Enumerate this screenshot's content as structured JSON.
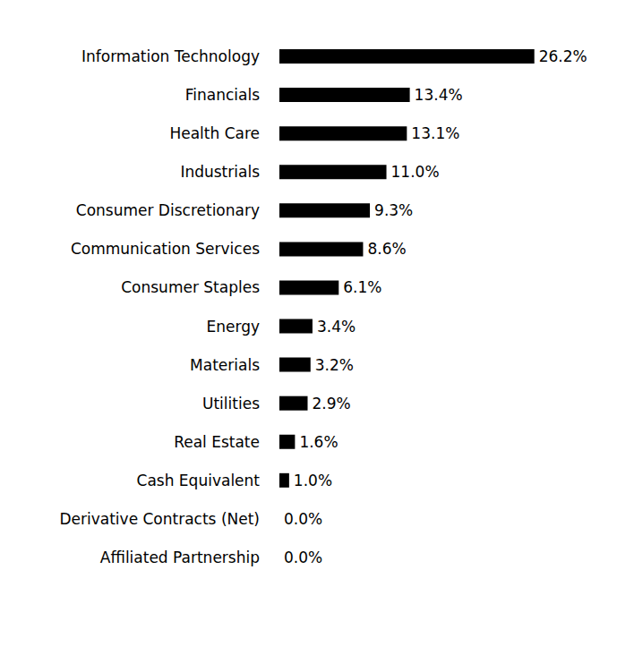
{
  "chart_data": {
    "type": "bar",
    "orientation": "horizontal",
    "categories": [
      "Information Technology",
      "Financials",
      "Health Care",
      "Industrials",
      "Consumer Discretionary",
      "Communication Services",
      "Consumer Staples",
      "Energy",
      "Materials",
      "Utilities",
      "Real Estate",
      "Cash Equivalent",
      "Derivative Contracts (Net)",
      "Affiliated Partnership"
    ],
    "values": [
      26.2,
      13.4,
      13.1,
      11.0,
      9.3,
      8.6,
      6.1,
      3.4,
      3.2,
      2.9,
      1.6,
      1.0,
      0.0,
      0.0
    ],
    "value_labels": [
      "26.2%",
      "13.4%",
      "13.1%",
      "11.0%",
      "9.3%",
      "8.6%",
      "6.1%",
      "3.4%",
      "3.2%",
      "2.9%",
      "1.6%",
      "1.0%",
      "0.0%",
      "0.0%"
    ],
    "color": "#000000",
    "xlim": [
      0,
      30
    ],
    "data_labels": true,
    "tick_labels": "y",
    "grid": false
  }
}
